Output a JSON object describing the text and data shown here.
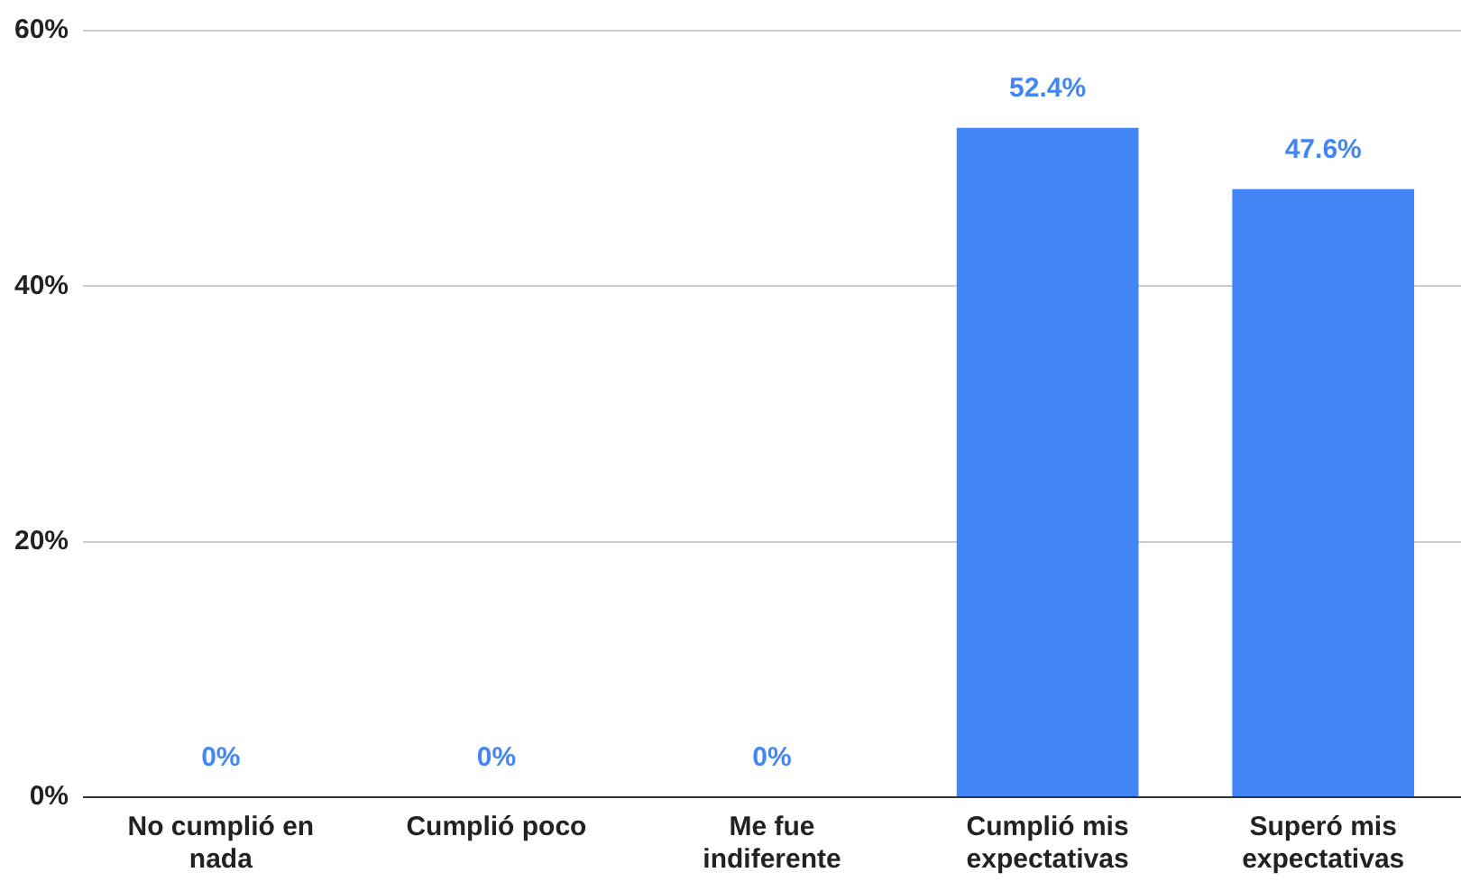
{
  "chart_data": {
    "type": "bar",
    "categories": [
      "No cumplió en nada",
      "Cumplió poco",
      "Me fue indiferente",
      "Cumplió mis expectativas",
      "Superó mis expectativas"
    ],
    "values": [
      0,
      0,
      0,
      52.4,
      47.6
    ],
    "value_labels": [
      "0%",
      "0%",
      "0%",
      "52.4%",
      "47.6%"
    ],
    "color": "#4285f4",
    "ylim": [
      0,
      60
    ],
    "yticks": [
      {
        "value": 0,
        "label": "0%"
      },
      {
        "value": 20,
        "label": "20%"
      },
      {
        "value": 40,
        "label": "40%"
      },
      {
        "value": 60,
        "label": "60%"
      }
    ],
    "grid": "y",
    "legend": false
  }
}
